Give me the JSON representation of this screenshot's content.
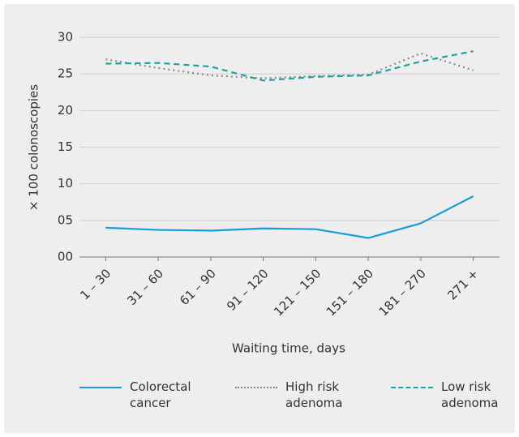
{
  "chart_data": {
    "type": "line",
    "x_label": "Waiting time, days",
    "y_label": "× 100 colonoscopies",
    "categories": [
      "1 – 30",
      "31 – 60",
      "61 – 90",
      "91 – 120",
      "121 – 150",
      "151 – 180",
      "181 – 270",
      "271 +"
    ],
    "series": [
      {
        "name": "Colorectal cancer",
        "color": "#1b9bd7",
        "dash": "solid",
        "values": [
          4.0,
          3.7,
          3.6,
          3.9,
          3.8,
          2.6,
          4.6,
          8.3
        ]
      },
      {
        "name": "High risk adenoma",
        "color": "#8a8a8a",
        "dash": "dotted",
        "values": [
          27.0,
          25.8,
          24.8,
          24.4,
          24.7,
          24.9,
          27.8,
          25.5
        ]
      },
      {
        "name": "Low risk adenoma",
        "color": "#1aa59b",
        "dash": "dashed",
        "values": [
          26.4,
          26.5,
          26.0,
          24.1,
          24.6,
          24.8,
          26.7,
          28.1
        ]
      }
    ],
    "ylim": [
      0,
      30
    ],
    "yticks": [
      {
        "value": 0,
        "label": "00"
      },
      {
        "value": 5,
        "label": "05"
      },
      10,
      15,
      20,
      25,
      30
    ],
    "grid": true,
    "legend_position": "bottom"
  }
}
